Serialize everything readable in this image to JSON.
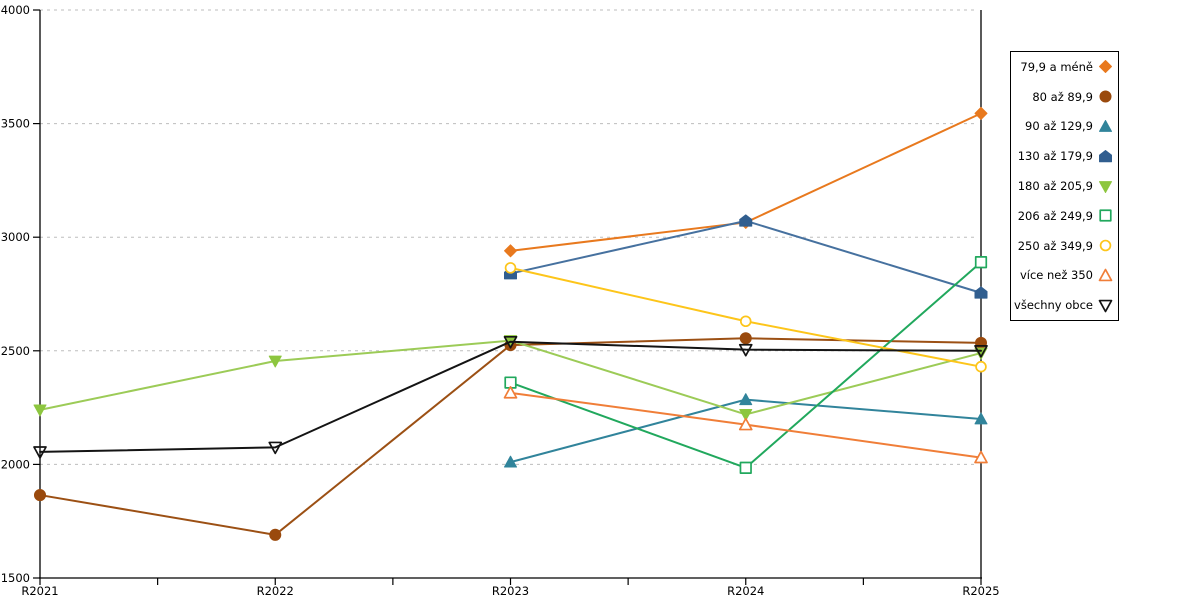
{
  "chart_data": {
    "type": "line",
    "title": "",
    "xlabel": "",
    "ylabel": "",
    "categories": [
      "R2021",
      "R2022",
      "R2023",
      "R2024",
      "R2025"
    ],
    "y_ticks": [
      1500,
      2000,
      2500,
      3000,
      3500,
      4000
    ],
    "ylim": [
      1500,
      4000
    ],
    "grid": "horizontal-dashed",
    "grid_color": "#bdbdbd",
    "axis_color": "#000000",
    "legend_position": "right",
    "series": [
      {
        "name": "79,9 a méně",
        "marker": "diamond",
        "marker_style": "filled",
        "color": "#E8791E",
        "values": [
          null,
          null,
          2940,
          3065,
          3545
        ]
      },
      {
        "name": "80 až 89,9",
        "marker": "circle",
        "marker_style": "filled",
        "color": "#9A4A0D",
        "line_color": "#9C5014",
        "values": [
          1865,
          1690,
          2525,
          2555,
          2535
        ]
      },
      {
        "name": "90 až 129,9",
        "marker": "triangle-up",
        "marker_style": "filled",
        "color": "#31849B",
        "values": [
          null,
          null,
          2010,
          2285,
          2200
        ]
      },
      {
        "name": "130 až 179,9",
        "marker": "pentagon",
        "marker_style": "filled",
        "color": "#315E8F",
        "line_color": "#46719F",
        "values": [
          null,
          null,
          2840,
          3072,
          2755
        ]
      },
      {
        "name": "180 až 205,9",
        "marker": "triangle-down",
        "marker_style": "filled",
        "color": "#8DC63F",
        "line_color": "#9CCB57",
        "values": [
          2240,
          2455,
          2545,
          2220,
          2490
        ]
      },
      {
        "name": "206 až 249,9",
        "marker": "square",
        "marker_style": "open",
        "color": "#21A85D",
        "values": [
          null,
          null,
          2360,
          1985,
          2890
        ]
      },
      {
        "name": "250 až 349,9",
        "marker": "circle",
        "marker_style": "open",
        "color": "#FDC51A",
        "values": [
          null,
          null,
          2865,
          2630,
          2430
        ]
      },
      {
        "name": "více než 350",
        "marker": "triangle-up",
        "marker_style": "open",
        "color": "#F07E38",
        "values": [
          null,
          null,
          2315,
          2175,
          2030
        ]
      },
      {
        "name": "všechny obce",
        "marker": "triangle-down",
        "marker_style": "open",
        "color": "#141414",
        "values": [
          2055,
          2075,
          2540,
          2505,
          2500
        ]
      }
    ]
  }
}
